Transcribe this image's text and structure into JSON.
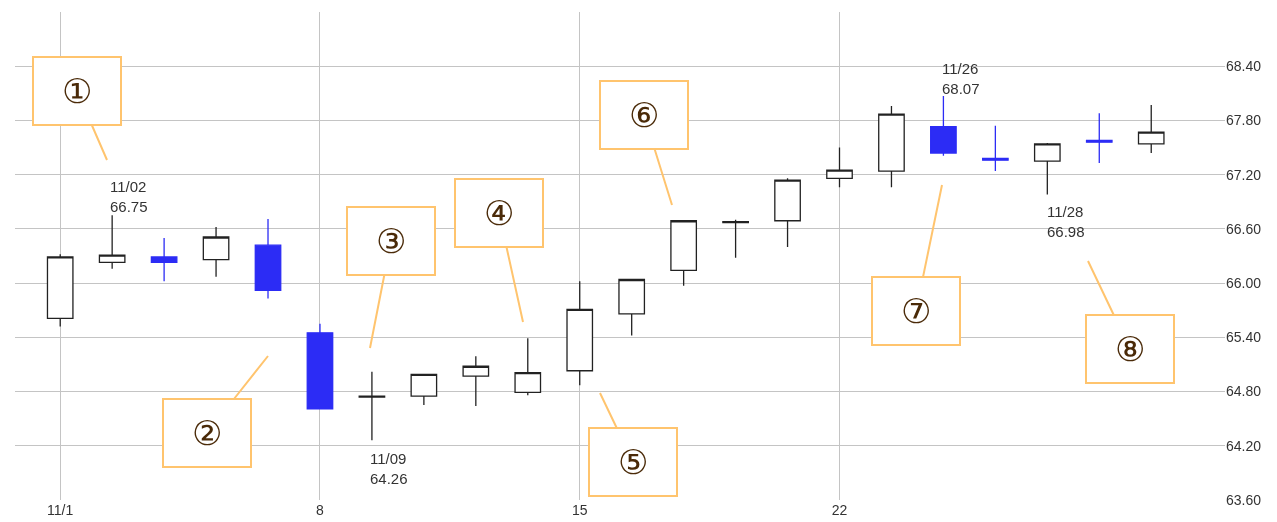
{
  "chart_data": {
    "type": "candlestick",
    "categories": [
      "11/1",
      null,
      null,
      null,
      null,
      "8",
      null,
      null,
      null,
      null,
      "15",
      null,
      null,
      null,
      null,
      "22",
      null,
      null,
      null,
      null,
      null,
      null
    ],
    "ohlc": [
      [
        65.61,
        66.32,
        65.52,
        66.29
      ],
      [
        66.23,
        66.75,
        66.16,
        66.31
      ],
      [
        66.29,
        66.5,
        66.02,
        66.23
      ],
      [
        66.26,
        66.62,
        66.07,
        66.51
      ],
      [
        66.42,
        66.71,
        65.83,
        65.92
      ],
      [
        65.45,
        65.55,
        64.61,
        64.61
      ],
      [
        64.74,
        65.02,
        64.26,
        64.75
      ],
      [
        64.75,
        64.99,
        64.65,
        64.99
      ],
      [
        64.97,
        65.19,
        64.64,
        65.08
      ],
      [
        64.79,
        65.39,
        64.76,
        65.01
      ],
      [
        65.03,
        66.02,
        64.87,
        65.71
      ],
      [
        65.66,
        66.04,
        65.42,
        66.04
      ],
      [
        66.14,
        66.69,
        65.97,
        66.69
      ],
      [
        66.67,
        66.7,
        66.28,
        66.68
      ],
      [
        66.69,
        67.16,
        66.4,
        67.14
      ],
      [
        67.16,
        67.5,
        67.06,
        67.25
      ],
      [
        67.24,
        67.96,
        67.06,
        67.87
      ],
      [
        67.73,
        68.07,
        67.41,
        67.44
      ],
      [
        67.38,
        67.74,
        67.24,
        67.36
      ],
      [
        67.35,
        67.55,
        66.98,
        67.54
      ],
      [
        67.58,
        67.88,
        67.33,
        67.56
      ],
      [
        67.54,
        67.97,
        67.44,
        67.67
      ]
    ],
    "colors": [
      "#ffffff",
      "#ffffff",
      "#2c2cf5",
      "#ffffff",
      "#2c2cf5",
      "#2c2cf5",
      "#222222",
      "#ffffff",
      "#ffffff",
      "#ffffff",
      "#ffffff",
      "#ffffff",
      "#ffffff",
      "#222222",
      "#ffffff",
      "#ffffff",
      "#ffffff",
      "#2c2cf5",
      "#2c2cf5",
      "#ffffff",
      "#2c2cf5",
      "#ffffff"
    ],
    "ylim": [
      63.6,
      69.0
    ],
    "yticks": [
      {
        "value": 63.6,
        "label": "63.60"
      },
      {
        "value": 64.2,
        "label": "64.20"
      },
      {
        "value": 64.8,
        "label": "64.80"
      },
      {
        "value": 65.4,
        "label": "65.40"
      },
      {
        "value": 66.0,
        "label": "66.00"
      },
      {
        "value": 66.6,
        "label": "66.60"
      },
      {
        "value": 67.2,
        "label": "67.20"
      },
      {
        "value": 67.8,
        "label": "67.80"
      },
      {
        "value": 68.4,
        "label": "68.40"
      }
    ],
    "grid": true,
    "annotations": [
      "①",
      "②",
      "③",
      "④",
      "⑤",
      "⑥",
      "⑦",
      "⑧",
      "11/02\n66.75",
      "11/09\n64.26",
      "11/26\n68.07",
      "11/28\n66.98"
    ]
  }
}
